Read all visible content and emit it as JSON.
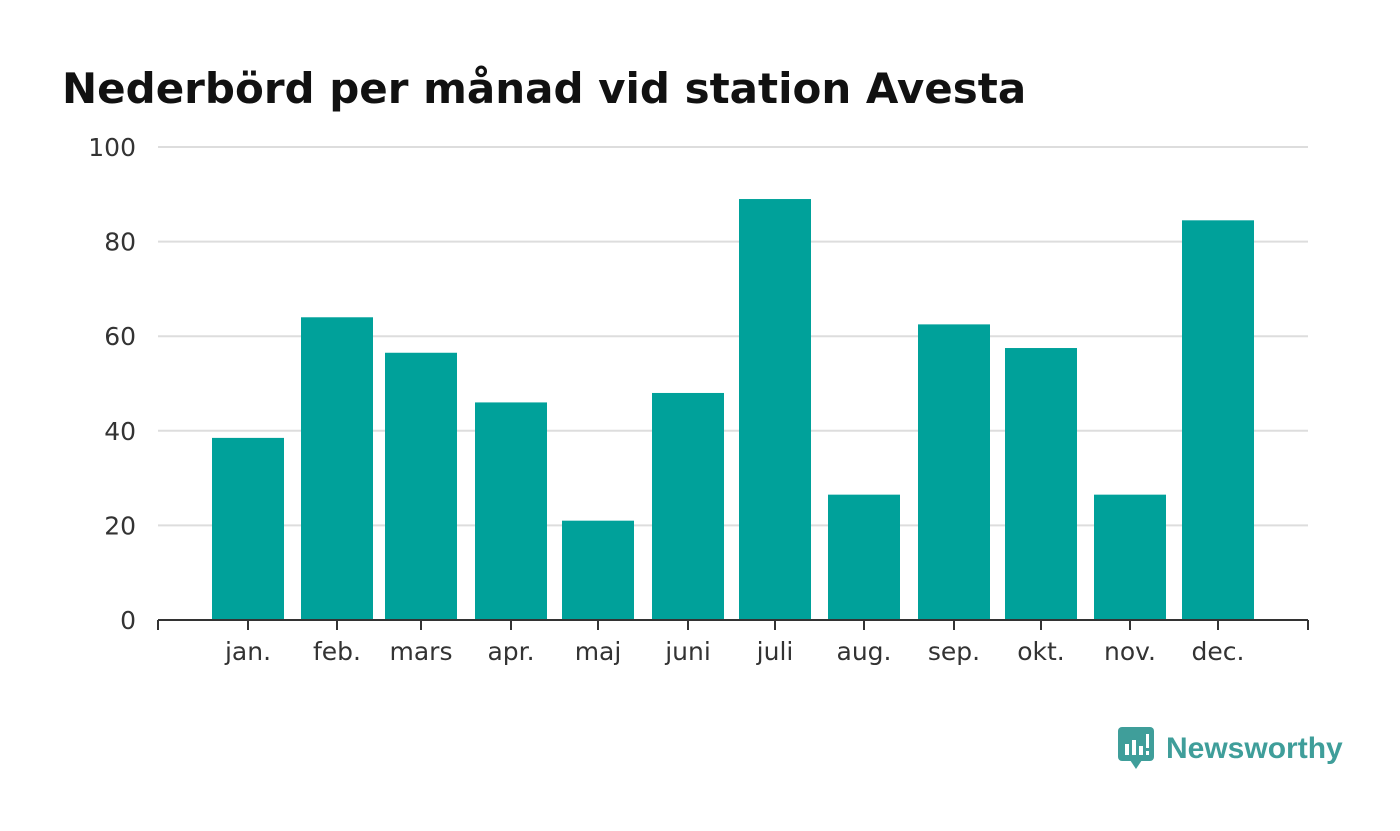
{
  "chart_data": {
    "type": "bar",
    "title": "Nederbörd per månad vid station Avesta",
    "categories": [
      "jan.",
      "feb.",
      "mars",
      "apr.",
      "maj",
      "juni",
      "juli",
      "aug.",
      "sep.",
      "okt.",
      "nov.",
      "dec."
    ],
    "values": [
      38.5,
      64,
      56.5,
      46,
      21,
      48,
      89,
      26.5,
      62.5,
      57.5,
      26.5,
      84.5
    ],
    "yticks": [
      0,
      20,
      40,
      60,
      80,
      100
    ],
    "ylim": [
      0,
      100
    ],
    "grid": true,
    "bar_color": "#00a19a"
  },
  "brand": {
    "name": "Newsworthy",
    "color": "#3f9e9a"
  }
}
